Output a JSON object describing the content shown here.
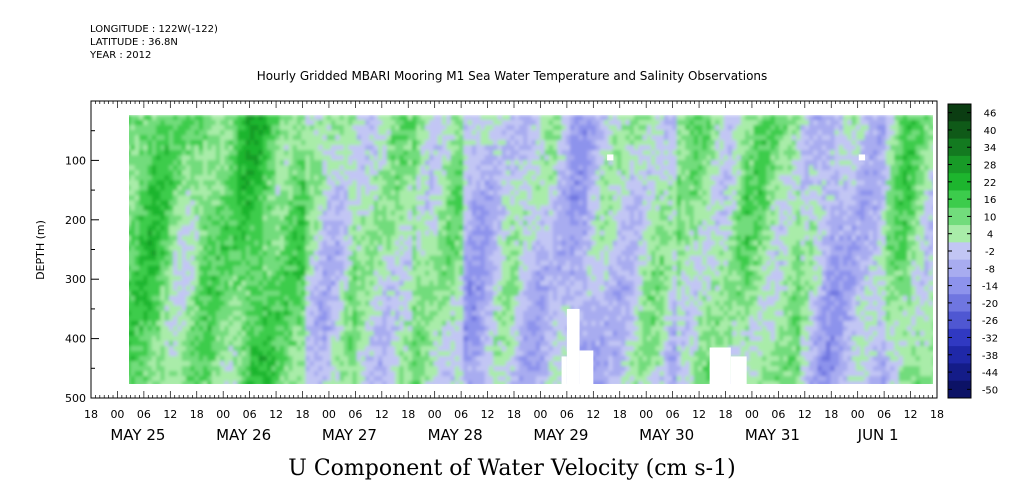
{
  "meta": {
    "longitude": "LONGITUDE : 122W(-122)",
    "latitude": "LATITUDE : 36.8N",
    "year": "YEAR : 2012"
  },
  "chart_data": {
    "type": "heatmap",
    "title": "Hourly Gridded MBARI Mooring M1 Sea Water Temperature and Salinity Observations",
    "xlabel": "U Component of Water Velocity (cm s-1)",
    "ylabel": "DEPTH (m)",
    "x_range": [
      "2012-05-24T18:00",
      "2012-06-01T18:00"
    ],
    "data_start": "2012-05-25T02:00",
    "ylim": [
      0,
      500
    ],
    "y_inverted": true,
    "y_major_ticks": [
      100,
      200,
      300,
      400,
      500
    ],
    "y_minor_step": 50,
    "hour_tick_labels": [
      "18",
      "00",
      "06",
      "12",
      "18",
      "00",
      "06",
      "12",
      "18",
      "00",
      "06",
      "12",
      "18",
      "00",
      "06",
      "12",
      "18",
      "00",
      "06",
      "12",
      "18",
      "00",
      "06",
      "12",
      "18",
      "00",
      "06",
      "12",
      "18",
      "00",
      "06",
      "12",
      "18"
    ],
    "day_labels": [
      "MAY 25",
      "MAY 26",
      "MAY 27",
      "MAY 28",
      "MAY 29",
      "MAY 30",
      "MAY 31",
      "JUN  1"
    ],
    "colorbar": {
      "levels": [
        46,
        40,
        34,
        28,
        22,
        16,
        10,
        4,
        -2,
        -8,
        -14,
        -20,
        -26,
        -32,
        -38,
        -44,
        -50
      ],
      "colors": [
        "#0b3d12",
        "#0f5a18",
        "#137a20",
        "#189a27",
        "#1db52e",
        "#3ccc4c",
        "#72dc7c",
        "#a9eca9",
        "#c2c6f4",
        "#a8acf0",
        "#8d93ec",
        "#6f76e0",
        "#4f57d2",
        "#3039c2",
        "#1f28a8",
        "#141c88",
        "#0c1266"
      ]
    },
    "grid": false,
    "field_description_bins": [
      {
        "x_day_start": 0.33,
        "pattern": "mostly-green"
      },
      {
        "x_day_start": 2.0,
        "pattern": "mixed"
      },
      {
        "x_day_start": 3.5,
        "pattern": "purple-dominant"
      },
      {
        "x_day_start": 5.5,
        "pattern": "mixed"
      },
      {
        "x_day_start": 6.5,
        "pattern": "purple-dominant"
      },
      {
        "x_day_start": 7.5,
        "pattern": "green-dominant"
      }
    ]
  }
}
